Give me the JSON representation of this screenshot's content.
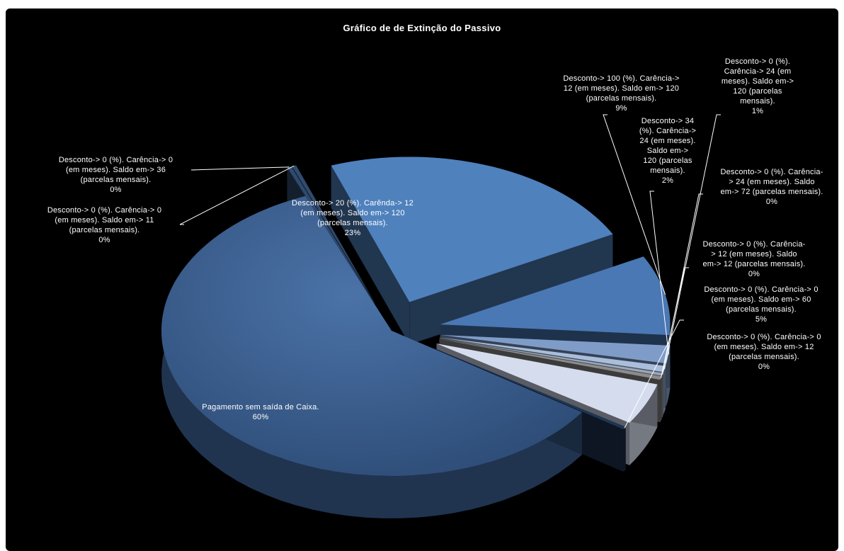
{
  "chart_data": {
    "type": "pie",
    "title": "Gráfico de  de Extinção do Passivo",
    "three_d": true,
    "exploded": true,
    "slices": [
      {
        "label": "Desconto-> 0 (%). Carência-> 0 (em meses).  Saldo em-> 36 (parcelas mensais).",
        "percent_label": "0%",
        "value": 0.3,
        "color": "#2f4a6e"
      },
      {
        "label": "Desconto-> 0 (%). Carência-> 0 (em meses).  Saldo em-> 11 (parcelas mensais).",
        "percent_label": "0%",
        "value": 0.3,
        "color": "#304b70"
      },
      {
        "label": "Desconto-> 20 (%). Carênda-> 12 (em meses).  Saldo em-> 120 (parcelas mensais).",
        "percent_label": "23%",
        "value": 23,
        "color": "#4f81bd"
      },
      {
        "label": "Desconto-> 100 (%). Carência-> 12 (em meses).  Saldo em-> 120 (parcelas mensais).",
        "percent_label": "9%",
        "value": 9,
        "color": "#4a78b4"
      },
      {
        "label": "Desconto-> 34 (%). Carência-> 24 (em meses).  Saldo em-> 120 (parcelas mensais).",
        "percent_label": "2%",
        "value": 2,
        "color": "#7f9cc9"
      },
      {
        "label": "Desconto-> 0 (%). Carência-> 24 (em meses).  Saldo em-> 120 (parcelas mensais).",
        "percent_label": "1%",
        "value": 0.7,
        "color": "#a9bddc"
      },
      {
        "label": "Desconto-> 0 (%). Carência-> 24 (em meses).  Saldo em-> 72 (parcelas mensais).",
        "percent_label": "0%",
        "value": 0.3,
        "color": "#9aa7b8"
      },
      {
        "label": "Desconto-> 0 (%). Carência-> 12 (em meses).  Saldo em-> 12 (parcelas mensais).",
        "percent_label": "0%",
        "value": 0.4,
        "color": "#8c8c8c"
      },
      {
        "label": "Desconto-> 0 (%). Carência-> 0 (em meses).  Saldo em-> 60 (parcelas mensais).",
        "percent_label": "5%",
        "value": 4.7,
        "color": "#d5dced"
      },
      {
        "label": "Desconto-> 0 (%). Carência-> 0 (em meses).  Saldo em-> 12 (parcelas mensais).",
        "percent_label": "0%",
        "value": 0.3,
        "color": "#1f3552"
      },
      {
        "label": "Pagamento sem saída de Caixa.",
        "percent_label": "60%",
        "value": 60,
        "color": "#3a5f91"
      }
    ],
    "legend": "none"
  },
  "labels": [
    {
      "lines": [
        "Desconto-> 0 (%). Carência-> 0",
        "(em meses).  Saldo em-> 36",
        "(parcelas mensais).",
        "0%"
      ]
    },
    {
      "lines": [
        "Desconto-> 0 (%). Carência-> 0",
        "(em meses).  Saldo em-> 11",
        "(parcelas mensais).",
        "0%"
      ]
    },
    {
      "lines": [
        "Desconto-> 20 (%). Carênda-> 12",
        "(em meses).  Saldo em-> 120",
        "(parcelas mensais).",
        "23%"
      ]
    },
    {
      "lines": [
        "Desconto-> 100 (%). Carência->",
        "12 (em meses).  Saldo em-> 120",
        "(parcelas mensais).",
        "9%"
      ]
    },
    {
      "lines": [
        "Desconto-> 34",
        "(%). Carência->",
        "24 (em meses).",
        "Saldo em->",
        "120 (parcelas",
        "mensais).",
        "2%"
      ]
    },
    {
      "lines": [
        "Desconto-> 0 (%).",
        "Carência-> 24 (em",
        "meses).  Saldo em->",
        "120 (parcelas",
        "mensais).",
        "1%"
      ]
    },
    {
      "lines": [
        "Desconto-> 0 (%). Carência-",
        "> 24 (em meses).  Saldo",
        "em-> 72 (parcelas mensais).",
        "0%"
      ]
    },
    {
      "lines": [
        "Desconto-> 0 (%). Carência-",
        "> 12 (em meses).  Saldo",
        "em-> 12 (parcelas mensais).",
        "0%"
      ]
    },
    {
      "lines": [
        "Desconto-> 0 (%). Carência-> 0",
        "(em meses).  Saldo em-> 60",
        "(parcelas mensais).",
        "5%"
      ]
    },
    {
      "lines": [
        "Desconto-> 0 (%). Carência-> 0",
        "(em meses).  Saldo em-> 12",
        "(parcelas mensais).",
        "0%"
      ]
    },
    {
      "lines": [
        "Pagamento sem saída de Caixa.",
        "60%"
      ]
    }
  ]
}
